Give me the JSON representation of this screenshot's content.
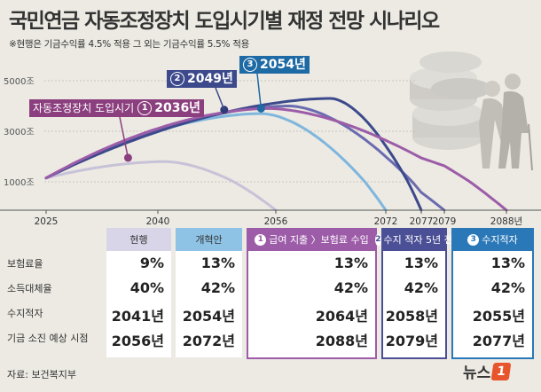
{
  "title": "국민연금 자동조정장치 도입시기별 재정 전망 시나리오",
  "subtitle": "※현행은 기금수익률 4.5% 적용 그 외는 기금수익률 5.5% 적용",
  "chart_data": {
    "type": "line",
    "ylabels": [
      "5000조",
      "3000조",
      "1000조"
    ],
    "yticks": [
      5000,
      3000,
      1000
    ],
    "xlabels": [
      "2025",
      "2040",
      "2056",
      "2072",
      "2077",
      "2079",
      "2088년"
    ],
    "xticks": [
      2025,
      2040,
      2056,
      2072,
      2077,
      2079,
      2088
    ],
    "xlim": [
      2020,
      2095
    ],
    "ylim": [
      0,
      5600
    ],
    "series": [
      {
        "name": "현행",
        "color": "#c8c2d8",
        "peak_year": 2041,
        "peak_value": 1800,
        "end_year": 2056
      },
      {
        "name": "개혁안",
        "color": "#7fb6de",
        "peak_year": 2054,
        "peak_value": 3700,
        "end_year": 2072
      },
      {
        "name": "2036년",
        "color": "#6b6bb0",
        "peak_year": 2058,
        "peak_value": 4000,
        "end_year": 2079
      },
      {
        "name": "2049년",
        "color": "#3c4a8c",
        "peak_year": 2064,
        "peak_value": 4300,
        "end_year": 2077
      },
      {
        "name": "2054년",
        "color": "#9c5ca8",
        "peak_year": 2055,
        "peak_value": 3900,
        "end_year": 2088
      }
    ],
    "markers": [
      {
        "year": 2036,
        "value": 1950,
        "color": "#8b3f7e"
      },
      {
        "year": 2049,
        "value": 3850,
        "color": "#2f3a78"
      },
      {
        "year": 2054,
        "value": 3900,
        "color": "#1e6aa5"
      }
    ],
    "annotations": [
      {
        "num": "1",
        "text": "자동조정장치 도입시기",
        "year_text": "2036년",
        "color": "#8b3f7e"
      },
      {
        "num": "2",
        "text": "",
        "year_text": "2049년",
        "color": "#3c4a8c"
      },
      {
        "num": "3",
        "text": "",
        "year_text": "2054년",
        "color": "#1e6aa5"
      }
    ]
  },
  "table": {
    "row_labels": [
      "보험료율",
      "소득대체율",
      "수지적자",
      "기금 소진 예상 시점"
    ],
    "columns": [
      {
        "head": "현행",
        "num": "",
        "head_bg": "#d9d5e8",
        "head_color": "#333",
        "values": [
          "9%",
          "40%",
          "2041년",
          "2056년"
        ]
      },
      {
        "head": "개혁안",
        "num": "",
        "head_bg": "#8ec3e6",
        "head_color": "#333",
        "values": [
          "13%",
          "42%",
          "2054년",
          "2072년"
        ]
      },
      {
        "head": "급여 지출 〉보험료 수입",
        "num": "1",
        "head_bg": "#9c5ca8",
        "head_color": "#fff",
        "values": [
          "13%",
          "42%",
          "2064년",
          "2088년"
        ]
      },
      {
        "head": "수지 적자 5년 전",
        "num": "2",
        "head_bg": "#4b4f96",
        "head_color": "#fff",
        "values": [
          "13%",
          "42%",
          "2058년",
          "2079년"
        ]
      },
      {
        "head": "수지적자",
        "num": "3",
        "head_bg": "#2a78b8",
        "head_color": "#fff",
        "values": [
          "13%",
          "42%",
          "2055년",
          "2077년"
        ]
      }
    ]
  },
  "source": "자료: 보건복지부",
  "logo": {
    "text": "뉴스",
    "mark": "1"
  }
}
